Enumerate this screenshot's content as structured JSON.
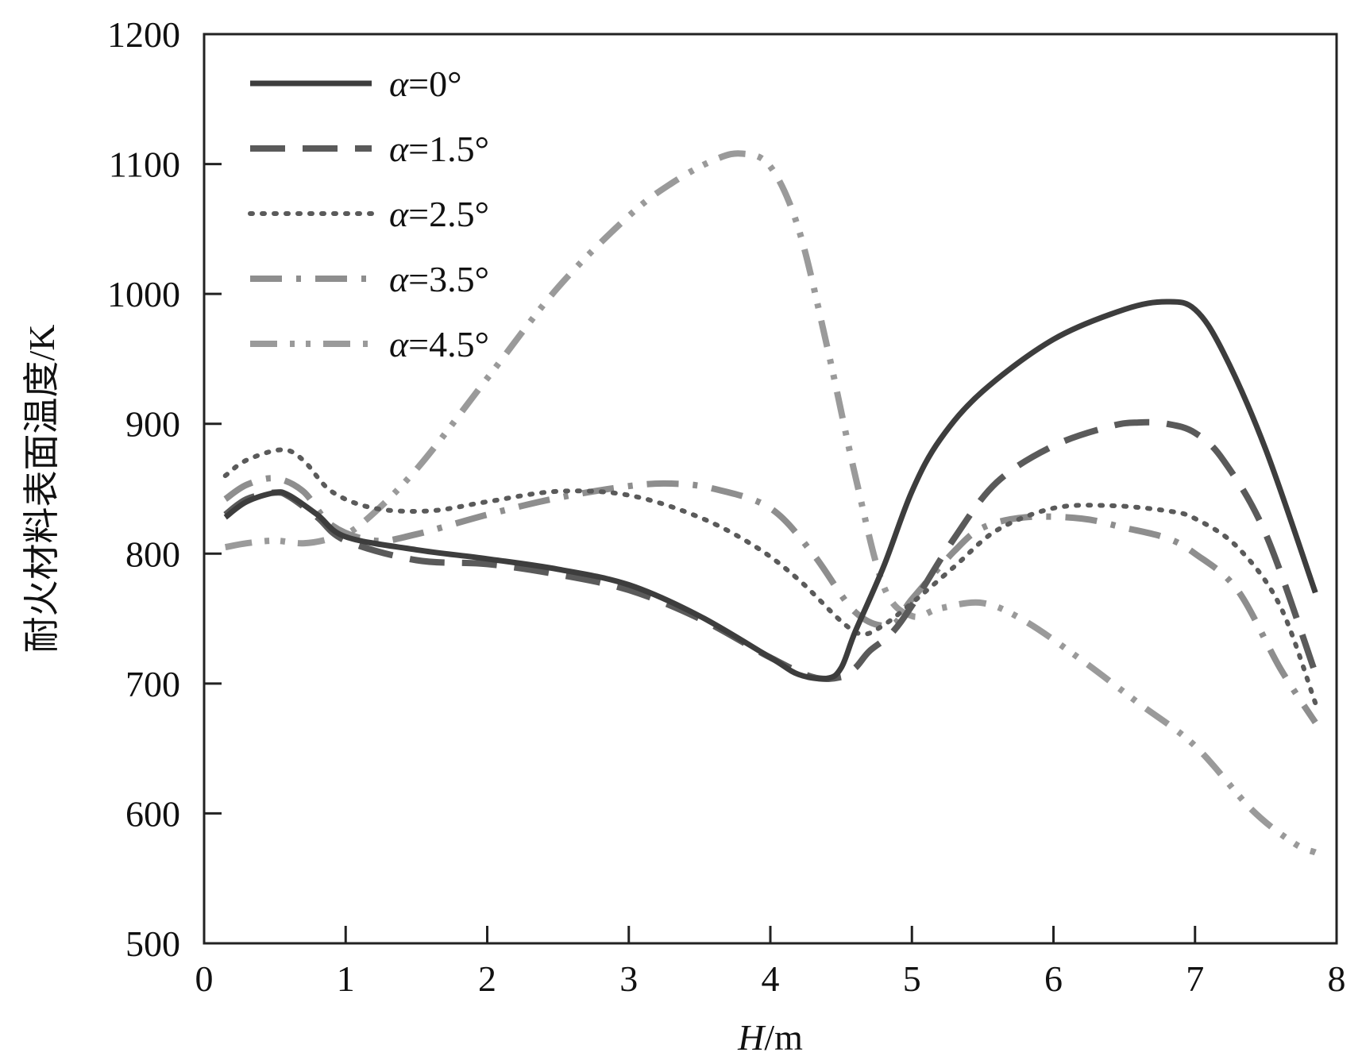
{
  "chart_data": {
    "type": "line",
    "xlabel_italic": "H",
    "xlabel_unit": "/m",
    "ylabel": "耐火材料表面温度/K",
    "xlim": [
      0,
      8
    ],
    "ylim": [
      500,
      1200
    ],
    "xticks": [
      0,
      1,
      2,
      3,
      4,
      5,
      6,
      7,
      8
    ],
    "yticks": [
      500,
      600,
      700,
      800,
      900,
      1000,
      1100,
      1200
    ],
    "grid": false,
    "legend_position": "top-left",
    "series": [
      {
        "name": "α=0°",
        "style": "solid",
        "color": "#3d3d3d",
        "x": [
          0.15,
          0.3,
          0.5,
          0.6,
          0.8,
          1.0,
          1.5,
          2.0,
          2.5,
          3.0,
          3.5,
          4.0,
          4.2,
          4.4,
          4.5,
          4.6,
          4.8,
          5.0,
          5.2,
          5.5,
          6.0,
          6.5,
          6.8,
          7.0,
          7.2,
          7.5,
          7.85
        ],
        "y": [
          828,
          840,
          847,
          845,
          830,
          813,
          803,
          796,
          788,
          776,
          752,
          720,
          707,
          704,
          712,
          740,
          790,
          848,
          888,
          925,
          965,
          988,
          994,
          988,
          955,
          880,
          770
        ]
      },
      {
        "name": "α=1.5°",
        "style": "dashed",
        "color": "#5a5a5a",
        "x": [
          0.15,
          0.3,
          0.5,
          0.6,
          0.8,
          1.0,
          1.5,
          2.0,
          2.5,
          3.0,
          3.5,
          4.0,
          4.3,
          4.5,
          4.6,
          4.7,
          4.85,
          5.0,
          5.3,
          5.6,
          6.0,
          6.4,
          6.6,
          6.8,
          7.0,
          7.2,
          7.5,
          7.85
        ],
        "y": [
          830,
          842,
          847,
          844,
          828,
          810,
          795,
          792,
          784,
          772,
          750,
          720,
          705,
          705,
          712,
          725,
          738,
          760,
          812,
          855,
          883,
          898,
          901,
          900,
          893,
          872,
          815,
          708
        ]
      },
      {
        "name": "α=2.5°",
        "style": "dotted",
        "color": "#5a5a5a",
        "x": [
          0.15,
          0.3,
          0.55,
          0.7,
          0.9,
          1.2,
          1.6,
          2.0,
          2.5,
          3.0,
          3.5,
          3.9,
          4.2,
          4.5,
          4.65,
          4.8,
          5.0,
          5.3,
          5.6,
          6.0,
          6.4,
          6.8,
          7.0,
          7.3,
          7.6,
          7.85
        ],
        "y": [
          860,
          872,
          880,
          872,
          848,
          835,
          833,
          840,
          848,
          845,
          828,
          805,
          780,
          748,
          738,
          745,
          762,
          790,
          818,
          835,
          837,
          833,
          827,
          805,
          760,
          685
        ]
      },
      {
        "name": "α=3.5°",
        "style": "dash-dot",
        "color": "#8e8e8e",
        "x": [
          0.15,
          0.3,
          0.5,
          0.7,
          0.9,
          1.2,
          1.5,
          2.0,
          2.5,
          3.0,
          3.3,
          3.6,
          4.0,
          4.3,
          4.6,
          4.85,
          5.0,
          5.3,
          5.5,
          5.8,
          6.2,
          6.5,
          6.8,
          7.0,
          7.3,
          7.6,
          7.85
        ],
        "y": [
          842,
          853,
          858,
          848,
          822,
          810,
          815,
          830,
          843,
          852,
          854,
          850,
          835,
          800,
          755,
          745,
          765,
          802,
          820,
          828,
          827,
          820,
          812,
          800,
          772,
          712,
          670
        ]
      },
      {
        "name": "α=4.5°",
        "style": "dash-dot-dot",
        "color": "#9a9a9a",
        "x": [
          0.15,
          0.3,
          0.5,
          0.7,
          0.9,
          1.1,
          1.5,
          2.0,
          2.5,
          3.0,
          3.3,
          3.6,
          3.8,
          4.0,
          4.2,
          4.4,
          4.6,
          4.8,
          5.0,
          5.2,
          5.5,
          5.8,
          6.2,
          6.6,
          7.0,
          7.4,
          7.7,
          7.85
        ],
        "y": [
          805,
          808,
          810,
          808,
          812,
          822,
          865,
          935,
          1005,
          1060,
          1085,
          1103,
          1108,
          1098,
          1050,
          960,
          860,
          775,
          752,
          758,
          762,
          748,
          718,
          685,
          652,
          603,
          577,
          570
        ]
      }
    ]
  }
}
